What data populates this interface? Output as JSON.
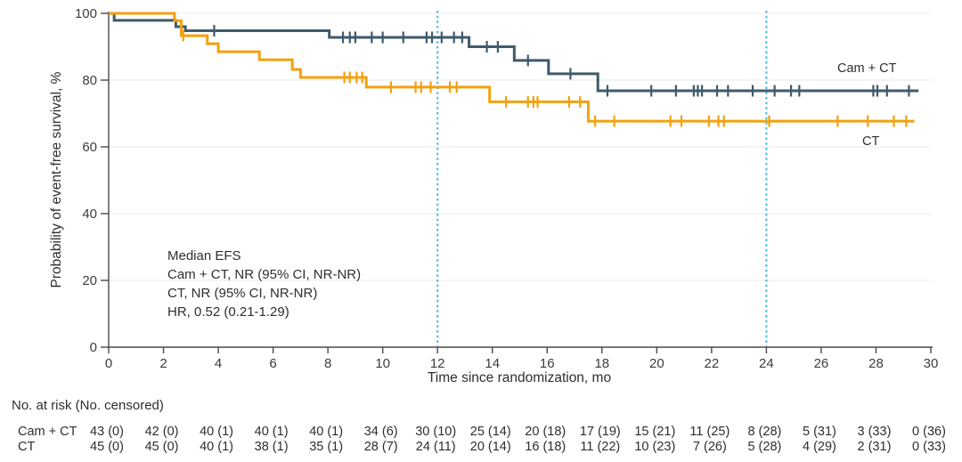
{
  "chart_data": {
    "type": "line",
    "subtype": "kaplan_meier_step",
    "title": "",
    "xlabel": "Time since randomization, mo",
    "ylabel": "Probability of event-free survival, %",
    "xlim": [
      0,
      30
    ],
    "ylim": [
      0,
      100
    ],
    "xticks": [
      0,
      2,
      4,
      6,
      8,
      10,
      12,
      14,
      16,
      18,
      20,
      22,
      24,
      26,
      28,
      30
    ],
    "yticks": [
      0,
      20,
      40,
      60,
      80,
      100
    ],
    "grid": "horizontal-light",
    "gridline_color": "#e9e9e9",
    "axis_color": "#4a4a4a",
    "reference_lines_x": [
      12,
      24
    ],
    "reference_line_color": "#41b7e7",
    "series": [
      {
        "name": "Cam + CT",
        "color": "#405a6b",
        "steps": [
          [
            0,
            100
          ],
          [
            0.2,
            97.9
          ],
          [
            2.45,
            96.0
          ],
          [
            2.8,
            94.8
          ],
          [
            8.05,
            92.8
          ],
          [
            13.15,
            90.0
          ],
          [
            14.8,
            85.9
          ],
          [
            16.05,
            81.9
          ],
          [
            17.85,
            76.8
          ]
        ],
        "end_t": 29.55,
        "censor_times": [
          3.85,
          8.55,
          8.8,
          9.0,
          9.6,
          10.0,
          10.75,
          11.6,
          11.8,
          12.15,
          12.6,
          12.9,
          13.8,
          14.2,
          15.3,
          16.85,
          18.2,
          19.8,
          20.7,
          21.35,
          21.5,
          21.65,
          22.2,
          22.6,
          23.5,
          24.3,
          24.9,
          25.2,
          27.9,
          28.05,
          28.4,
          29.2
        ]
      },
      {
        "name": "CT",
        "color": "#f2a10f",
        "steps": [
          [
            0,
            100
          ],
          [
            2.4,
            97.8
          ],
          [
            2.65,
            93.3
          ],
          [
            3.6,
            90.9
          ],
          [
            4.0,
            88.5
          ],
          [
            5.5,
            86.1
          ],
          [
            6.7,
            83.2
          ],
          [
            7.0,
            80.8
          ],
          [
            9.4,
            77.9
          ],
          [
            13.9,
            73.5
          ],
          [
            17.5,
            67.7
          ]
        ],
        "end_t": 29.4,
        "censor_times": [
          2.72,
          8.6,
          8.8,
          9.05,
          9.25,
          10.3,
          11.2,
          11.4,
          11.75,
          12.45,
          12.7,
          14.5,
          15.3,
          15.5,
          15.65,
          16.8,
          17.2,
          17.75,
          18.45,
          20.5,
          20.9,
          21.9,
          22.25,
          22.45,
          24.1,
          26.6,
          27.7,
          28.65,
          29.1
        ]
      }
    ],
    "curve_labels": [
      {
        "text": "Cam + CT",
        "series": 0
      },
      {
        "text": "CT",
        "series": 1
      }
    ],
    "annotation": {
      "lines": [
        "Median EFS",
        "Cam + CT, NR (95% CI, NR-NR)",
        "CT, NR (95% CI, NR-NR)",
        "HR, 0.52 (0.21-1.29)"
      ]
    },
    "risk_table": {
      "header": "No. at risk (No. censored)",
      "time_points": [
        0,
        2,
        4,
        6,
        8,
        10,
        12,
        14,
        16,
        18,
        20,
        22,
        24,
        26,
        28,
        30
      ],
      "rows": [
        {
          "label": "Cam + CT",
          "values": [
            "43 (0)",
            "42 (0)",
            "40 (1)",
            "40 (1)",
            "40 (1)",
            "34 (6)",
            "30 (10)",
            "25 (14)",
            "20 (18)",
            "17 (19)",
            "15 (21)",
            "11 (25)",
            "8 (28)",
            "5 (31)",
            "3 (33)",
            "0 (36)"
          ]
        },
        {
          "label": "CT",
          "values": [
            "45 (0)",
            "45 (0)",
            "40 (1)",
            "38 (1)",
            "35 (1)",
            "28 (7)",
            "24 (11)",
            "20 (14)",
            "16 (18)",
            "11 (22)",
            "10 (23)",
            "7 (26)",
            "5 (28)",
            "4 (29)",
            "2 (31)",
            "0 (33)"
          ]
        }
      ]
    }
  }
}
